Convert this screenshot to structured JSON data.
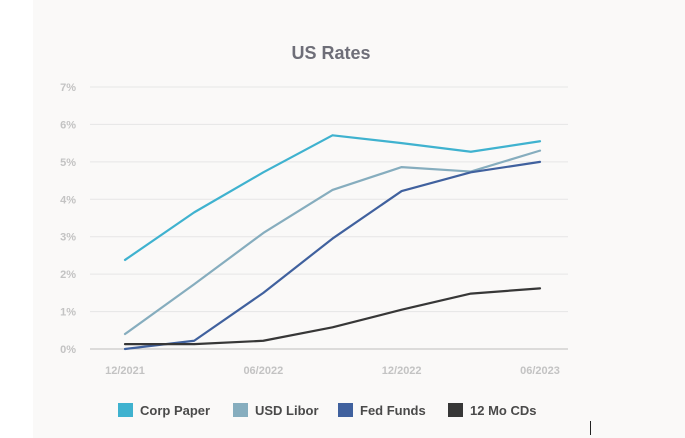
{
  "chart_data": {
    "type": "line",
    "title": "US Rates",
    "xlabel": "",
    "ylabel": "",
    "ylim": [
      0,
      7
    ],
    "y_ticks": [
      "0%",
      "1%",
      "2%",
      "3%",
      "4%",
      "5%",
      "6%",
      "7%"
    ],
    "x_tick_labels": [
      "12/2021",
      "06/2022",
      "12/2022",
      "06/2023"
    ],
    "x": [
      "12/2021",
      "03/2022",
      "06/2022",
      "09/2022",
      "12/2022",
      "03/2023",
      "06/2023"
    ],
    "grid": true,
    "legend": "bottom",
    "series": [
      {
        "name": "Corp Paper",
        "color": "#3fb2cf",
        "values": [
          2.38,
          3.65,
          4.72,
          5.71,
          5.5,
          5.27,
          5.55
        ]
      },
      {
        "name": "USD Libor",
        "color": "#86adbe",
        "values": [
          0.4,
          1.73,
          3.1,
          4.25,
          4.86,
          4.74,
          5.3
        ]
      },
      {
        "name": "Fed Funds",
        "color": "#40619e",
        "values": [
          0.0,
          0.22,
          1.5,
          2.95,
          4.22,
          4.72,
          5.0
        ]
      },
      {
        "name": "12 Mo CDs",
        "color": "#373737",
        "values": [
          0.13,
          0.13,
          0.22,
          0.58,
          1.05,
          1.48,
          1.62
        ]
      }
    ]
  }
}
